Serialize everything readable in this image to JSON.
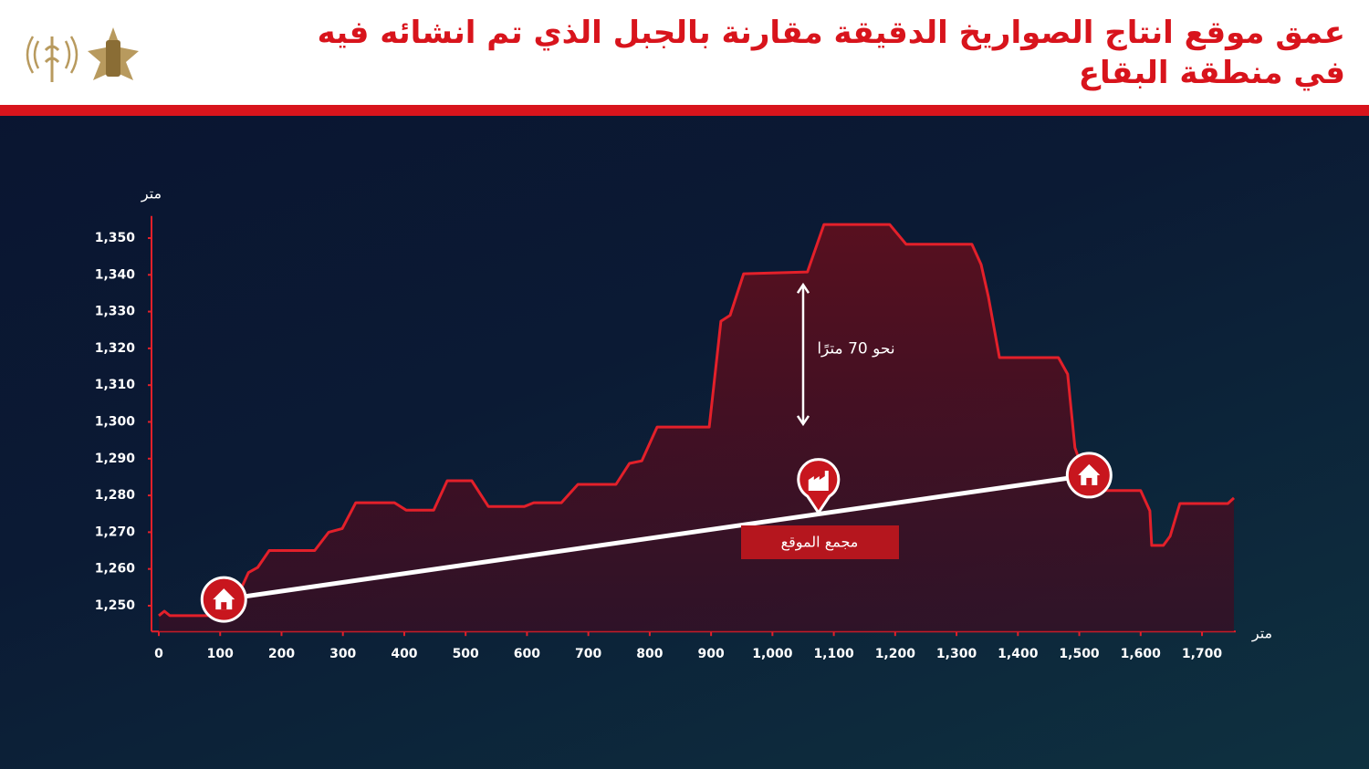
{
  "chart_data": {
    "type": "area",
    "title_lines": [
      "عمق موقع انتاج الصواريخ الدقيقة مقارنة بالجبل الذي تم انشائه فيه",
      "في منطقة البقاع"
    ],
    "y_unit": "متر",
    "x_unit": "متر",
    "x": [
      0,
      9,
      18,
      113,
      131,
      146,
      161,
      180,
      254,
      277,
      299,
      321,
      384,
      403,
      448,
      470,
      510,
      537,
      596,
      611,
      656,
      683,
      745,
      767,
      787,
      812,
      897,
      916,
      931,
      953,
      1057,
      1084,
      1191,
      1218,
      1325,
      1340,
      1352,
      1370,
      1466,
      1481,
      1493,
      1518,
      1600,
      1615,
      1618,
      1637,
      1648,
      1664,
      1742,
      1752
    ],
    "series": [
      {
        "color": "#e3202a",
        "values": [
          1247.3,
          1248.5,
          1247.3,
          1247.3,
          1253.5,
          1259,
          1260.4,
          1265,
          1265,
          1270,
          1271,
          1278,
          1278,
          1276,
          1276,
          1284,
          1284,
          1277,
          1277,
          1278,
          1278,
          1283,
          1283,
          1288.7,
          1289.4,
          1298.6,
          1298.6,
          1327.4,
          1329,
          1340.3,
          1340.8,
          1353.7,
          1353.7,
          1348.3,
          1348.3,
          1342.8,
          1334,
          1317.5,
          1317.5,
          1313,
          1293,
          1281.3,
          1281.3,
          1275.8,
          1266.4,
          1266.4,
          1268.9,
          1277.8,
          1277.8,
          1279.3
        ]
      }
    ],
    "line": {
      "color": "#ffffff",
      "x": [
        106,
        1516
      ],
      "values": [
        1251.7,
        1285.5
      ]
    },
    "site": {
      "label": "مجمع الموقع",
      "x": 1075,
      "y": 1275.3
    },
    "annotation": {
      "text": "نحو 70 مترًا",
      "x": 1050,
      "y": [
        1299.4,
        1337.3
      ]
    },
    "xlim": [
      0,
      1755
    ],
    "ylim": [
      1243,
      1356
    ],
    "xticks": [
      0,
      100,
      200,
      300,
      400,
      500,
      600,
      700,
      800,
      900,
      {
        "value": 1000,
        "label": "1,000"
      },
      {
        "value": 1100,
        "label": "1,100"
      },
      {
        "value": 1200,
        "label": "1,200"
      },
      {
        "value": 1300,
        "label": "1,300"
      },
      {
        "value": 1400,
        "label": "1,400"
      },
      {
        "value": 1500,
        "label": "1,500"
      },
      {
        "value": 1600,
        "label": "1,600"
      },
      {
        "value": 1700,
        "label": "1,700"
      }
    ],
    "yticks": [
      {
        "value": 1250,
        "label": "1,250"
      },
      {
        "value": 1260,
        "label": "1,260"
      },
      {
        "value": 1270,
        "label": "1,270"
      },
      {
        "value": 1280,
        "label": "1,280"
      },
      {
        "value": 1290,
        "label": "1,290"
      },
      {
        "value": 1300,
        "label": "1,300"
      },
      {
        "value": 1310,
        "label": "1,310"
      },
      {
        "value": 1320,
        "label": "1,320"
      },
      {
        "value": 1330,
        "label": "1,330"
      },
      {
        "value": 1340,
        "label": "1,340"
      },
      {
        "value": 1350,
        "label": "1,350"
      }
    ]
  }
}
